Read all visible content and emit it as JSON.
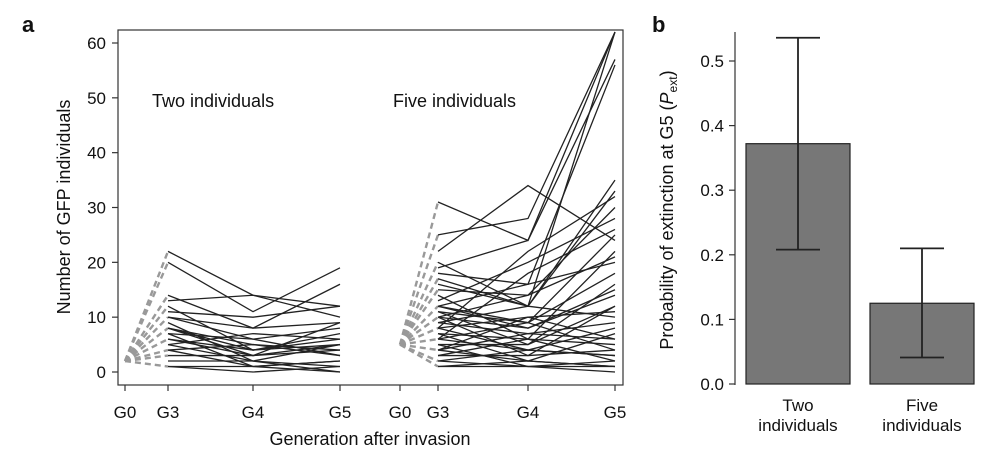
{
  "chart_data": [
    {
      "panel": "a",
      "type": "line",
      "ylabel": "Number of GFP individuals",
      "xlabel": "Generation after invasion",
      "ylim": [
        0,
        62
      ],
      "yticks": [
        0,
        10,
        20,
        30,
        40,
        50,
        60
      ],
      "x_categories": [
        "G0",
        "G3",
        "G4",
        "G5"
      ],
      "groups": [
        {
          "label": "Two individuals",
          "start": 2,
          "dashed_g3_values": [
            22,
            20,
            14,
            12,
            10,
            8,
            6,
            4,
            3,
            1
          ],
          "series_g3_g4_g5": [
            [
              22,
              14,
              12
            ],
            [
              20,
              11,
              19
            ],
            [
              14,
              8,
              16
            ],
            [
              13,
              14,
              10
            ],
            [
              12,
              4,
              6
            ],
            [
              11,
              10,
              12
            ],
            [
              10,
              6,
              8
            ],
            [
              9,
              2,
              5
            ],
            [
              8,
              5,
              4
            ],
            [
              8,
              3,
              9
            ],
            [
              7,
              6,
              3
            ],
            [
              7,
              1,
              2
            ],
            [
              6,
              4,
              7
            ],
            [
              6,
              3,
              5
            ],
            [
              5,
              7,
              6
            ],
            [
              5,
              2,
              1
            ],
            [
              4,
              5,
              3
            ],
            [
              4,
              1,
              2
            ],
            [
              3,
              3,
              4
            ],
            [
              2,
              2,
              0
            ],
            [
              1,
              0,
              1
            ],
            [
              1,
              1,
              0
            ],
            [
              8,
              4,
              5
            ],
            [
              10,
              8,
              9
            ]
          ]
        },
        {
          "label": "Five individuals",
          "start": 5,
          "dashed_g3_values": [
            31,
            25,
            20,
            17,
            15,
            12,
            10,
            8,
            6,
            4,
            2,
            1
          ],
          "series_g3_g4_g5": [
            [
              31,
              24,
              62
            ],
            [
              25,
              28,
              62
            ],
            [
              22,
              34,
              24
            ],
            [
              20,
              12,
              62
            ],
            [
              19,
              24,
              57
            ],
            [
              18,
              16,
              56
            ],
            [
              17,
              12,
              35
            ],
            [
              16,
              12,
              33
            ],
            [
              15,
              14,
              30
            ],
            [
              14,
              6,
              22
            ],
            [
              13,
              20,
              28
            ],
            [
              12,
              9,
              25
            ],
            [
              12,
              16,
              20
            ],
            [
              11,
              9,
              18
            ],
            [
              11,
              5,
              16
            ],
            [
              10,
              8,
              14
            ],
            [
              10,
              3,
              12
            ],
            [
              9,
              12,
              10
            ],
            [
              9,
              7,
              9
            ],
            [
              8,
              4,
              8
            ],
            [
              8,
              10,
              6
            ],
            [
              7,
              6,
              5
            ],
            [
              7,
              2,
              7
            ],
            [
              6,
              9,
              4
            ],
            [
              6,
              4,
              3
            ],
            [
              5,
              5,
              12
            ],
            [
              5,
              1,
              2
            ],
            [
              4,
              7,
              6
            ],
            [
              4,
              2,
              1
            ],
            [
              3,
              3,
              4
            ],
            [
              3,
              6,
              2
            ],
            [
              2,
              1,
              1
            ],
            [
              2,
              4,
              3
            ],
            [
              1,
              1,
              0
            ],
            [
              1,
              2,
              1
            ],
            [
              8,
              22,
              32
            ],
            [
              10,
              14,
              21
            ],
            [
              6,
              18,
              26
            ],
            [
              12,
              8,
              15
            ],
            [
              4,
              10,
              11
            ]
          ]
        }
      ]
    },
    {
      "panel": "b",
      "type": "bar",
      "ylabel_prefix": "Probability of extinction at G5 (",
      "ylabel_var": "P",
      "ylabel_sub": "ext",
      "ylabel_suffix": ")",
      "ylim": [
        0,
        0.55
      ],
      "yticks": [
        "0.0",
        "0.1",
        "0.2",
        "0.3",
        "0.4",
        "0.5"
      ],
      "categories": [
        [
          "Two",
          "individuals"
        ],
        [
          "Five",
          "individuals"
        ]
      ],
      "values": [
        0.372,
        0.125
      ],
      "error_low": [
        0.208,
        0.041
      ],
      "error_high": [
        0.536,
        0.21
      ],
      "bar_color": "#777777"
    }
  ]
}
